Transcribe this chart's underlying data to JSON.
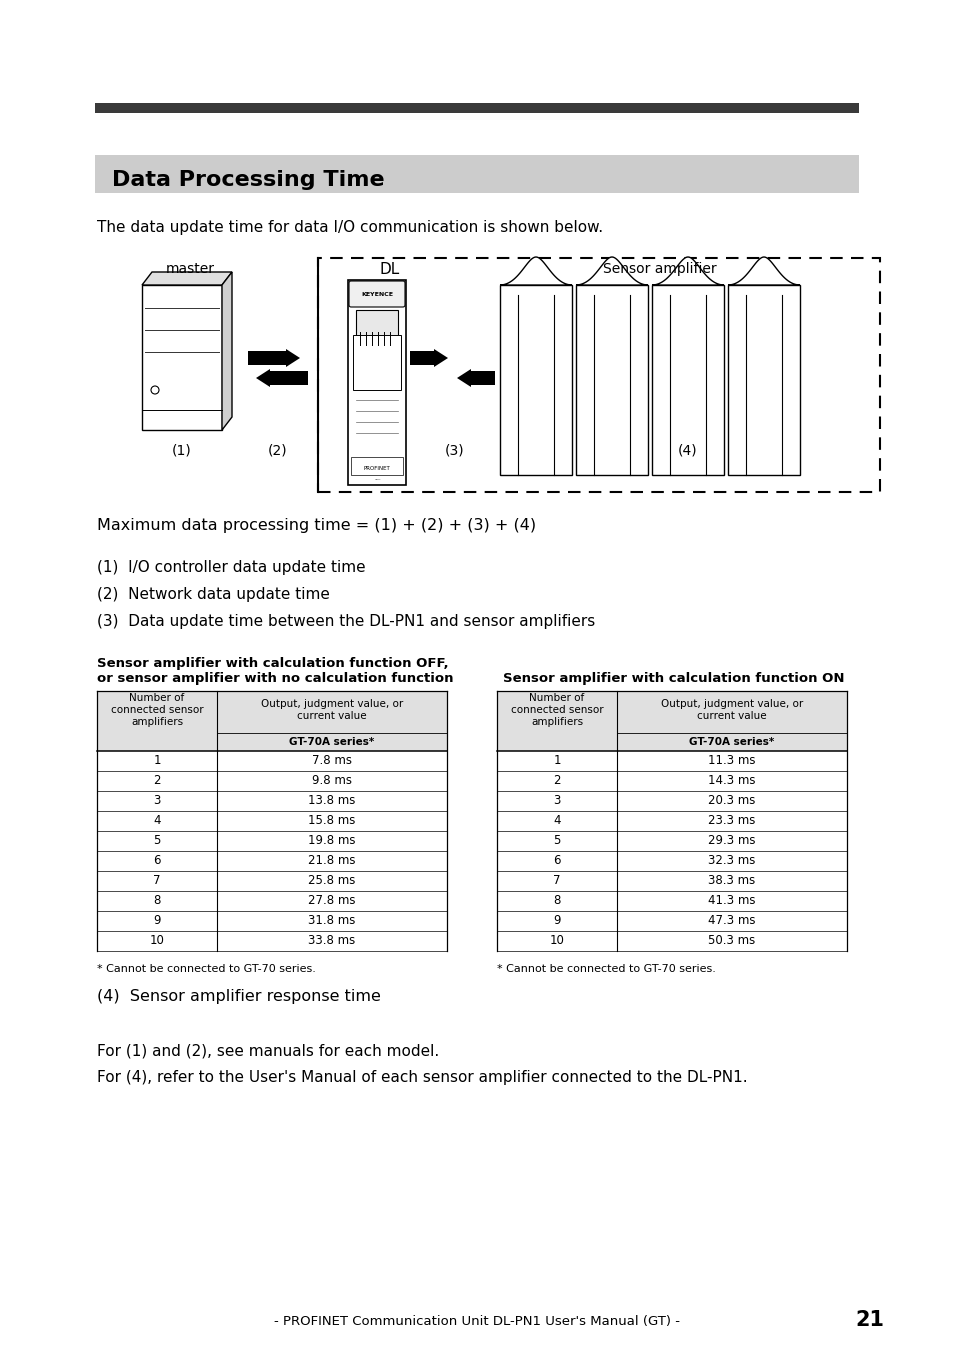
{
  "page_title": "Data Processing Time",
  "top_bar_color": "#3a3a3a",
  "section_bg_color": "#cccccc",
  "intro_text": "The data update time for data I/O communication is shown below.",
  "formula_text": "Maximum data processing time = (1) + (2) + (3) + (4)",
  "list_items": [
    "(1)  I/O controller data update time",
    "(2)  Network data update time",
    "(3)  Data update time between the DL-PN1 and sensor amplifiers"
  ],
  "table1_title_line1": "Sensor amplifier with calculation function OFF,",
  "table1_title_line2": "or sensor amplifier with no calculation function",
  "table2_title": "Sensor amplifier with calculation function ON",
  "table1_data": [
    [
      "1",
      "7.8 ms"
    ],
    [
      "2",
      "9.8 ms"
    ],
    [
      "3",
      "13.8 ms"
    ],
    [
      "4",
      "15.8 ms"
    ],
    [
      "5",
      "19.8 ms"
    ],
    [
      "6",
      "21.8 ms"
    ],
    [
      "7",
      "25.8 ms"
    ],
    [
      "8",
      "27.8 ms"
    ],
    [
      "9",
      "31.8 ms"
    ],
    [
      "10",
      "33.8 ms"
    ]
  ],
  "table2_data": [
    [
      "1",
      "11.3 ms"
    ],
    [
      "2",
      "14.3 ms"
    ],
    [
      "3",
      "20.3 ms"
    ],
    [
      "4",
      "23.3 ms"
    ],
    [
      "5",
      "29.3 ms"
    ],
    [
      "6",
      "32.3 ms"
    ],
    [
      "7",
      "38.3 ms"
    ],
    [
      "8",
      "41.3 ms"
    ],
    [
      "9",
      "47.3 ms"
    ],
    [
      "10",
      "50.3 ms"
    ]
  ],
  "footnote": "* Cannot be connected to GT-70 series.",
  "item4": "(4)  Sensor amplifier response time",
  "footer_line1": "For (1) and (2), see manuals for each model.",
  "footer_line2": "For (4), refer to the User's Manual of each sensor amplifier connected to the DL-PN1.",
  "bottom_text": "- PROFINET Communication Unit DL-PN1 User's Manual (GT) -",
  "page_number": "21",
  "label_master": "master",
  "label_DL": "DL",
  "label_sensor": "Sensor amplifier",
  "label_1": "(1)",
  "label_2": "(2)",
  "label_3": "(3)",
  "label_4": "(4)"
}
